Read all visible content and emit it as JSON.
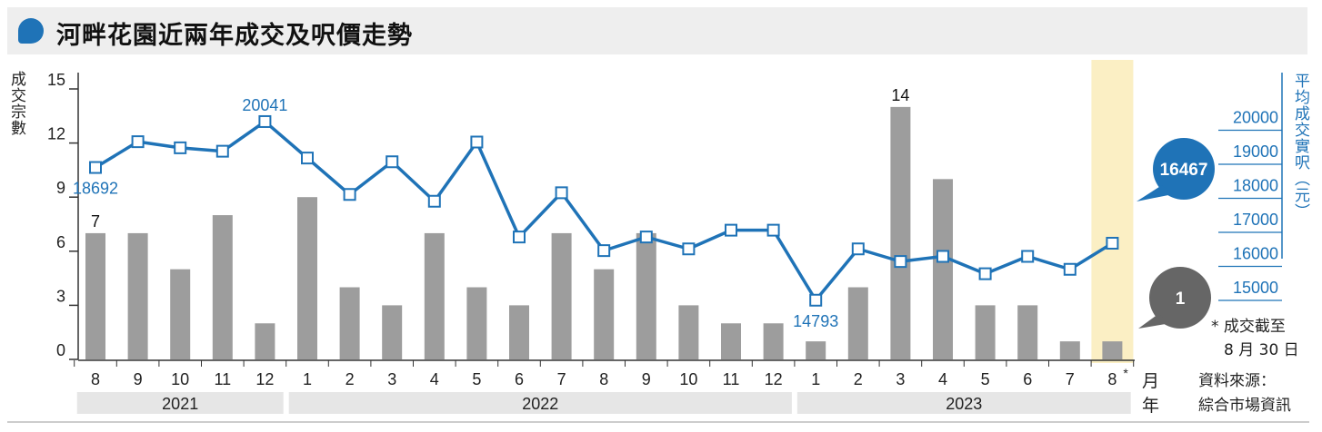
{
  "title": "河畔花園近兩年成交及呎價走勢",
  "left_axis_label": "成交宗數",
  "right_axis_label": "平均成交實呎（元）",
  "month_unit": "月",
  "year_unit": "年",
  "footnote_line1": "* 成交截至",
  "footnote_line2": "8 月 30 日",
  "source_line1": "資料來源：",
  "source_line2": "綜合市場資訊",
  "bubble_price": "16467",
  "bubble_count": "1",
  "colors": {
    "bar": "#9d9d9d",
    "line": "#1f73b7",
    "highlight": "#fbefc4",
    "bubble_count": "#666666"
  },
  "chart_data": {
    "type": "bar+line",
    "categories": [
      "8",
      "9",
      "10",
      "11",
      "12",
      "1",
      "2",
      "3",
      "4",
      "5",
      "6",
      "7",
      "8",
      "9",
      "10",
      "11",
      "12",
      "1",
      "2",
      "3",
      "4",
      "5",
      "6",
      "7",
      "8*"
    ],
    "years": [
      {
        "label": "2021",
        "start": 0,
        "end": 4
      },
      {
        "label": "2022",
        "start": 5,
        "end": 16
      },
      {
        "label": "2023",
        "start": 17,
        "end": 24
      }
    ],
    "series": [
      {
        "name": "成交宗數",
        "axis": "left",
        "kind": "bar",
        "values": [
          7,
          7,
          5,
          8,
          2,
          9,
          4,
          3,
          7,
          4,
          3,
          7,
          5,
          7,
          3,
          2,
          2,
          1,
          4,
          14,
          10,
          3,
          3,
          1,
          1
        ]
      },
      {
        "name": "平均成交實呎（元）",
        "axis": "right",
        "kind": "line",
        "values": [
          18692,
          19450,
          19270,
          19170,
          20041,
          18970,
          17900,
          18860,
          17700,
          19440,
          16650,
          17950,
          16250,
          16650,
          16300,
          16850,
          16850,
          14793,
          16300,
          15930,
          16080,
          15570,
          16080,
          15700,
          16467
        ]
      }
    ],
    "left_ticks": [
      0,
      3,
      6,
      9,
      12,
      15
    ],
    "left_ylim": [
      0,
      15
    ],
    "right_ticks": [
      15000,
      16000,
      17000,
      18000,
      19000,
      20000
    ],
    "right_ylim": [
      13000,
      21000
    ],
    "bar_labels": [
      {
        "index": 0,
        "text": "7"
      },
      {
        "index": 19,
        "text": "14"
      }
    ],
    "line_labels": [
      {
        "index": 0,
        "text": "18692",
        "pos": "below"
      },
      {
        "index": 4,
        "text": "20041",
        "pos": "above"
      },
      {
        "index": 17,
        "text": "14793",
        "pos": "below"
      }
    ],
    "highlight_index": 24
  }
}
